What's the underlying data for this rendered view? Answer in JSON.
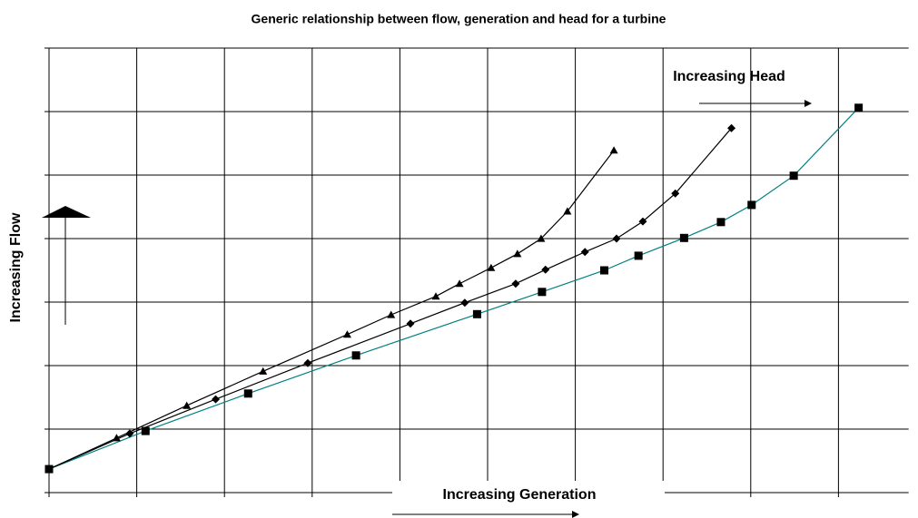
{
  "chart_data": {
    "type": "line",
    "title": "Generic relationship between flow, generation and head for a turbine",
    "x_label": "Increasing Generation",
    "y_label": "Increasing Flow",
    "annotations": [
      "Increasing Head"
    ],
    "xlim": [
      0,
      9.8
    ],
    "xticks": [
      0,
      1,
      2,
      3,
      4,
      5,
      6,
      7,
      8,
      9
    ],
    "ylim": [
      0,
      7
    ],
    "yticks": [
      0,
      1,
      2,
      3,
      4,
      5,
      6,
      7
    ],
    "grid": true,
    "series": [
      {
        "color": "#008080",
        "marker": "square",
        "x": [
          0,
          1.1,
          2.27,
          3.5,
          4.88,
          5.62,
          6.33,
          6.72,
          7.24,
          7.66,
          8.01,
          8.49,
          9.23
        ],
        "values": [
          0.37,
          0.97,
          1.56,
          2.16,
          2.81,
          3.16,
          3.5,
          3.73,
          4.01,
          4.26,
          4.53,
          4.99,
          6.06
        ]
      },
      {
        "color": "#000000",
        "marker": "diamond",
        "x": [
          0,
          0.92,
          1.9,
          2.95,
          4.12,
          4.74,
          5.32,
          5.66,
          6.11,
          6.47,
          6.77,
          7.14,
          7.78
        ],
        "values": [
          0.37,
          0.93,
          1.47,
          2.04,
          2.66,
          2.99,
          3.29,
          3.51,
          3.79,
          4.0,
          4.27,
          4.71,
          5.74
        ]
      },
      {
        "color": "#000000",
        "marker": "triangle",
        "x": [
          0,
          0.77,
          1.57,
          2.44,
          3.4,
          3.9,
          4.41,
          4.68,
          5.04,
          5.34,
          5.61,
          5.91,
          6.44
        ],
        "values": [
          0.37,
          0.86,
          1.37,
          1.91,
          2.49,
          2.8,
          3.09,
          3.29,
          3.54,
          3.76,
          4.0,
          4.43,
          5.39
        ]
      }
    ]
  }
}
